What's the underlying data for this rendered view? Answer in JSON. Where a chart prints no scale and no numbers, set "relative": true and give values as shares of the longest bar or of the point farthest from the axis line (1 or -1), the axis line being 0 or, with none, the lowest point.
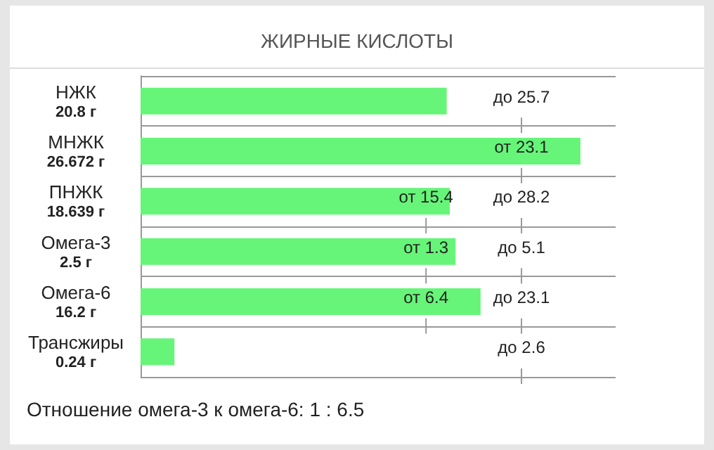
{
  "chart_data": {
    "type": "bar",
    "orientation": "horizontal",
    "relative": true,
    "title": "ЖИРНЫЕ КИСЛОТЫ",
    "categories": [
      "НЖК\n20.8 г",
      "МНЖК\n26.672 г",
      "ПНЖК\n18.639 г",
      "Омега-3\n2.5 г",
      "Омега-6\n16.2 г",
      "Трансжиры\n0.24 г"
    ],
    "values": [
      0.696,
      1,
      0.703,
      0.716,
      0.773,
      0.077
    ],
    "color": "#66f578",
    "grid": "y",
    "annotations": [
      "до 25.7",
      "от 23.1",
      "от 15.4",
      "до 28.2",
      "от 1.3",
      "до 5.1",
      "от 6.4",
      "до 23.1",
      "до 2.6",
      "Отношение омега-3 к омега-6: 1 : 6.5"
    ]
  }
}
